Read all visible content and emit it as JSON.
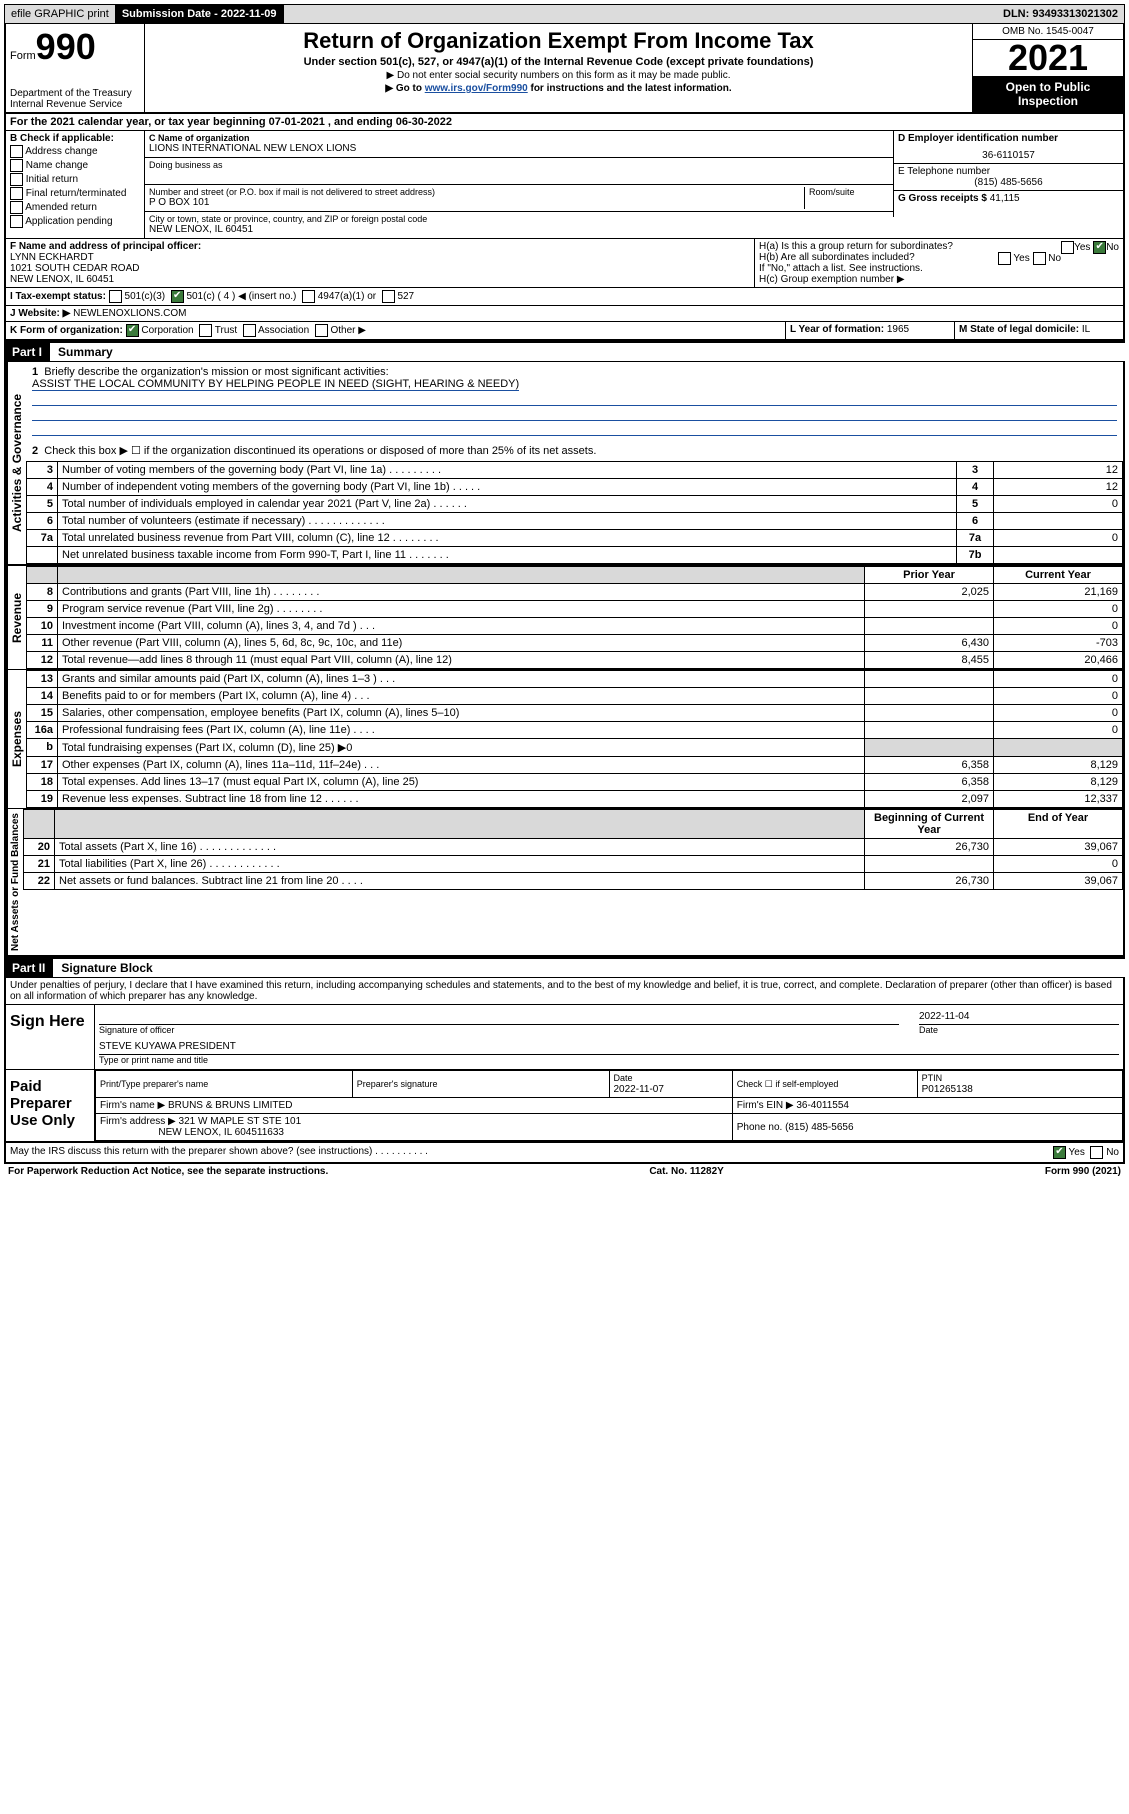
{
  "header": {
    "efile": "efile GRAPHIC print",
    "submission_label": "Submission Date - 2022-11-09",
    "dln": "DLN: 93493313021302"
  },
  "top": {
    "form_label": "Form",
    "form_num": "990",
    "dept": "Department of the Treasury",
    "irs": "Internal Revenue Service",
    "title": "Return of Organization Exempt From Income Tax",
    "sub": "Under section 501(c), 527, or 4947(a)(1) of the Internal Revenue Code (except private foundations)",
    "note1": "▶ Do not enter social security numbers on this form as it may be made public.",
    "note2_prefix": "▶ Go to ",
    "note2_link": "www.irs.gov/Form990",
    "note2_suffix": " for instructions and the latest information.",
    "omb": "OMB No. 1545-0047",
    "year": "2021",
    "open": "Open to Public Inspection"
  },
  "lineA": "For the 2021 calendar year, or tax year beginning 07-01-2021   , and ending 06-30-2022",
  "boxB": {
    "label": "B Check if applicable:",
    "addr": "Address change",
    "name": "Name change",
    "initial": "Initial return",
    "final": "Final return/terminated",
    "amended": "Amended return",
    "pending": "Application pending"
  },
  "boxC": {
    "name_label": "C Name of organization",
    "name": "LIONS INTERNATIONAL NEW LENOX LIONS",
    "dba_label": "Doing business as",
    "dba": "",
    "addr_label": "Number and street (or P.O. box if mail is not delivered to street address)",
    "addr": "P O BOX 101",
    "room_label": "Room/suite",
    "city_label": "City or town, state or province, country, and ZIP or foreign postal code",
    "city": "NEW LENOX, IL  60451"
  },
  "boxD": {
    "label": "D Employer identification number",
    "ein": "36-6110157"
  },
  "boxE": {
    "label": "E Telephone number",
    "phone": "(815) 485-5656"
  },
  "boxG": {
    "label": "G Gross receipts $",
    "amount": "41,115"
  },
  "boxF": {
    "label": "F Name and address of principal officer:",
    "name": "LYNN ECKHARDT",
    "addr1": "1021 SOUTH CEDAR ROAD",
    "addr2": "NEW LENOX, IL  60451"
  },
  "boxH": {
    "ha": "H(a)  Is this a group return for subordinates?",
    "ha_yes": "Yes",
    "ha_no": "No",
    "hb": "H(b)  Are all subordinates included?",
    "hb_note": "If \"No,\" attach a list. See instructions.",
    "hc": "H(c)  Group exemption number ▶"
  },
  "boxI": {
    "label": "I   Tax-exempt status:",
    "c3": "501(c)(3)",
    "c": "501(c) ( 4 ) ◀ (insert no.)",
    "a1": "4947(a)(1) or",
    "s527": "527"
  },
  "boxJ": {
    "label": "J   Website: ▶",
    "site": "NEWLENOXLIONS.COM"
  },
  "boxK": {
    "label": "K Form of organization:",
    "corp": "Corporation",
    "trust": "Trust",
    "assoc": "Association",
    "other": "Other ▶"
  },
  "boxL": {
    "label": "L Year of formation:",
    "val": "1965"
  },
  "boxM": {
    "label": "M State of legal domicile:",
    "val": "IL"
  },
  "part1": {
    "header": "Part I",
    "title": "Summary",
    "q1": "Briefly describe the organization's mission or most significant activities:",
    "mission": "ASSIST THE LOCAL COMMUNITY BY HELPING PEOPLE IN NEED (SIGHT, HEARING & NEEDY)",
    "q2": "Check this box ▶ ☐  if the organization discontinued its operations or disposed of more than 25% of its net assets.",
    "lines": [
      {
        "n": "3",
        "d": "Number of voting members of the governing body (Part VI, line 1a)   .    .    .    .    .    .    .    .    .",
        "nb": "3",
        "v": "12"
      },
      {
        "n": "4",
        "d": "Number of independent voting members of the governing body (Part VI, line 1b)   .    .    .    .    .",
        "nb": "4",
        "v": "12"
      },
      {
        "n": "5",
        "d": "Total number of individuals employed in calendar year 2021 (Part V, line 2a)   .    .    .    .    .    .",
        "nb": "5",
        "v": "0"
      },
      {
        "n": "6",
        "d": "Total number of volunteers (estimate if necessary)   .    .    .    .    .    .    .    .    .    .    .    .    .",
        "nb": "6",
        "v": ""
      },
      {
        "n": "7a",
        "d": "Total unrelated business revenue from Part VIII, column (C), line 12   .    .    .    .    .    .    .    .",
        "nb": "7a",
        "v": "0"
      },
      {
        "n": "",
        "d": "Net unrelated business taxable income from Form 990-T, Part I, line 11   .    .    .    .    .    .    .",
        "nb": "7b",
        "v": ""
      }
    ],
    "cols": {
      "prior": "Prior Year",
      "current": "Current Year"
    },
    "revenue": [
      {
        "n": "8",
        "d": "Contributions and grants (Part VIII, line 1h)   .    .    .    .    .    .    .    .",
        "p": "2,025",
        "c": "21,169"
      },
      {
        "n": "9",
        "d": "Program service revenue (Part VIII, line 2g)   .    .    .    .    .    .    .    .",
        "p": "",
        "c": "0"
      },
      {
        "n": "10",
        "d": "Investment income (Part VIII, column (A), lines 3, 4, and 7d )   .    .    .",
        "p": "",
        "c": "0"
      },
      {
        "n": "11",
        "d": "Other revenue (Part VIII, column (A), lines 5, 6d, 8c, 9c, 10c, and 11e)",
        "p": "6,430",
        "c": "-703"
      },
      {
        "n": "12",
        "d": "Total revenue—add lines 8 through 11 (must equal Part VIII, column (A), line 12)",
        "p": "8,455",
        "c": "20,466"
      }
    ],
    "expenses": [
      {
        "n": "13",
        "d": "Grants and similar amounts paid (Part IX, column (A), lines 1–3 )   .    .    .",
        "p": "",
        "c": "0"
      },
      {
        "n": "14",
        "d": "Benefits paid to or for members (Part IX, column (A), line 4)   .    .    .",
        "p": "",
        "c": "0"
      },
      {
        "n": "15",
        "d": "Salaries, other compensation, employee benefits (Part IX, column (A), lines 5–10)",
        "p": "",
        "c": "0"
      },
      {
        "n": "16a",
        "d": "Professional fundraising fees (Part IX, column (A), line 11e)   .    .    .    .",
        "p": "",
        "c": "0"
      },
      {
        "n": "b",
        "d": "Total fundraising expenses (Part IX, column (D), line 25) ▶0",
        "p": "shade",
        "c": "shade"
      },
      {
        "n": "17",
        "d": "Other expenses (Part IX, column (A), lines 11a–11d, 11f–24e)   .    .    .",
        "p": "6,358",
        "c": "8,129"
      },
      {
        "n": "18",
        "d": "Total expenses. Add lines 13–17 (must equal Part IX, column (A), line 25)",
        "p": "6,358",
        "c": "8,129"
      },
      {
        "n": "19",
        "d": "Revenue less expenses. Subtract line 18 from line 12   .    .    .    .    .    .",
        "p": "2,097",
        "c": "12,337"
      }
    ],
    "cols2": {
      "begin": "Beginning of Current Year",
      "end": "End of Year"
    },
    "assets": [
      {
        "n": "20",
        "d": "Total assets (Part X, line 16)   .   .   .   .   .   .   .   .   .   .   .   .   .",
        "p": "26,730",
        "c": "39,067"
      },
      {
        "n": "21",
        "d": "Total liabilities (Part X, line 26)   .   .   .   .   .   .   .   .   .   .   .   .",
        "p": "",
        "c": "0"
      },
      {
        "n": "22",
        "d": "Net assets or fund balances. Subtract line 21 from line 20   .   .   .   .",
        "p": "26,730",
        "c": "39,067"
      }
    ]
  },
  "vlabels": {
    "gov": "Activities & Governance",
    "rev": "Revenue",
    "exp": "Expenses",
    "net": "Net Assets or Fund Balances"
  },
  "part2": {
    "header": "Part II",
    "title": "Signature Block",
    "penalty": "Under penalties of perjury, I declare that I have examined this return, including accompanying schedules and statements, and to the best of my knowledge and belief, it is true, correct, and complete. Declaration of preparer (other than officer) is based on all information of which preparer has any knowledge.",
    "sign_here": "Sign Here",
    "sig_officer": "Signature of officer",
    "sig_date": "2022-11-04",
    "date_label": "Date",
    "officer_name": "STEVE KUYAWA  PRESIDENT",
    "officer_label": "Type or print name and title",
    "paid_prep": "Paid Preparer Use Only",
    "prep_name_label": "Print/Type preparer's name",
    "prep_sig_label": "Preparer's signature",
    "prep_date_label": "Date",
    "prep_date": "2022-11-07",
    "check_self": "Check ☐ if self-employed",
    "ptin_label": "PTIN",
    "ptin": "P01265138",
    "firm_name_label": "Firm's name    ▶",
    "firm_name": "BRUNS & BRUNS LIMITED",
    "firm_ein_label": "Firm's EIN ▶",
    "firm_ein": "36-4011554",
    "firm_addr_label": "Firm's address ▶",
    "firm_addr1": "321 W MAPLE ST STE 101",
    "firm_addr2": "NEW LENOX, IL  604511633",
    "firm_phone_label": "Phone no.",
    "firm_phone": "(815) 485-5656",
    "discuss": "May the IRS discuss this return with the preparer shown above? (see instructions)    .    .    .    .    .    .    .    .    .    .",
    "discuss_yes": "Yes",
    "discuss_no": "No"
  },
  "footer": {
    "paperwork": "For Paperwork Reduction Act Notice, see the separate instructions.",
    "cat": "Cat. No. 11282Y",
    "form": "Form 990 (2021)"
  }
}
